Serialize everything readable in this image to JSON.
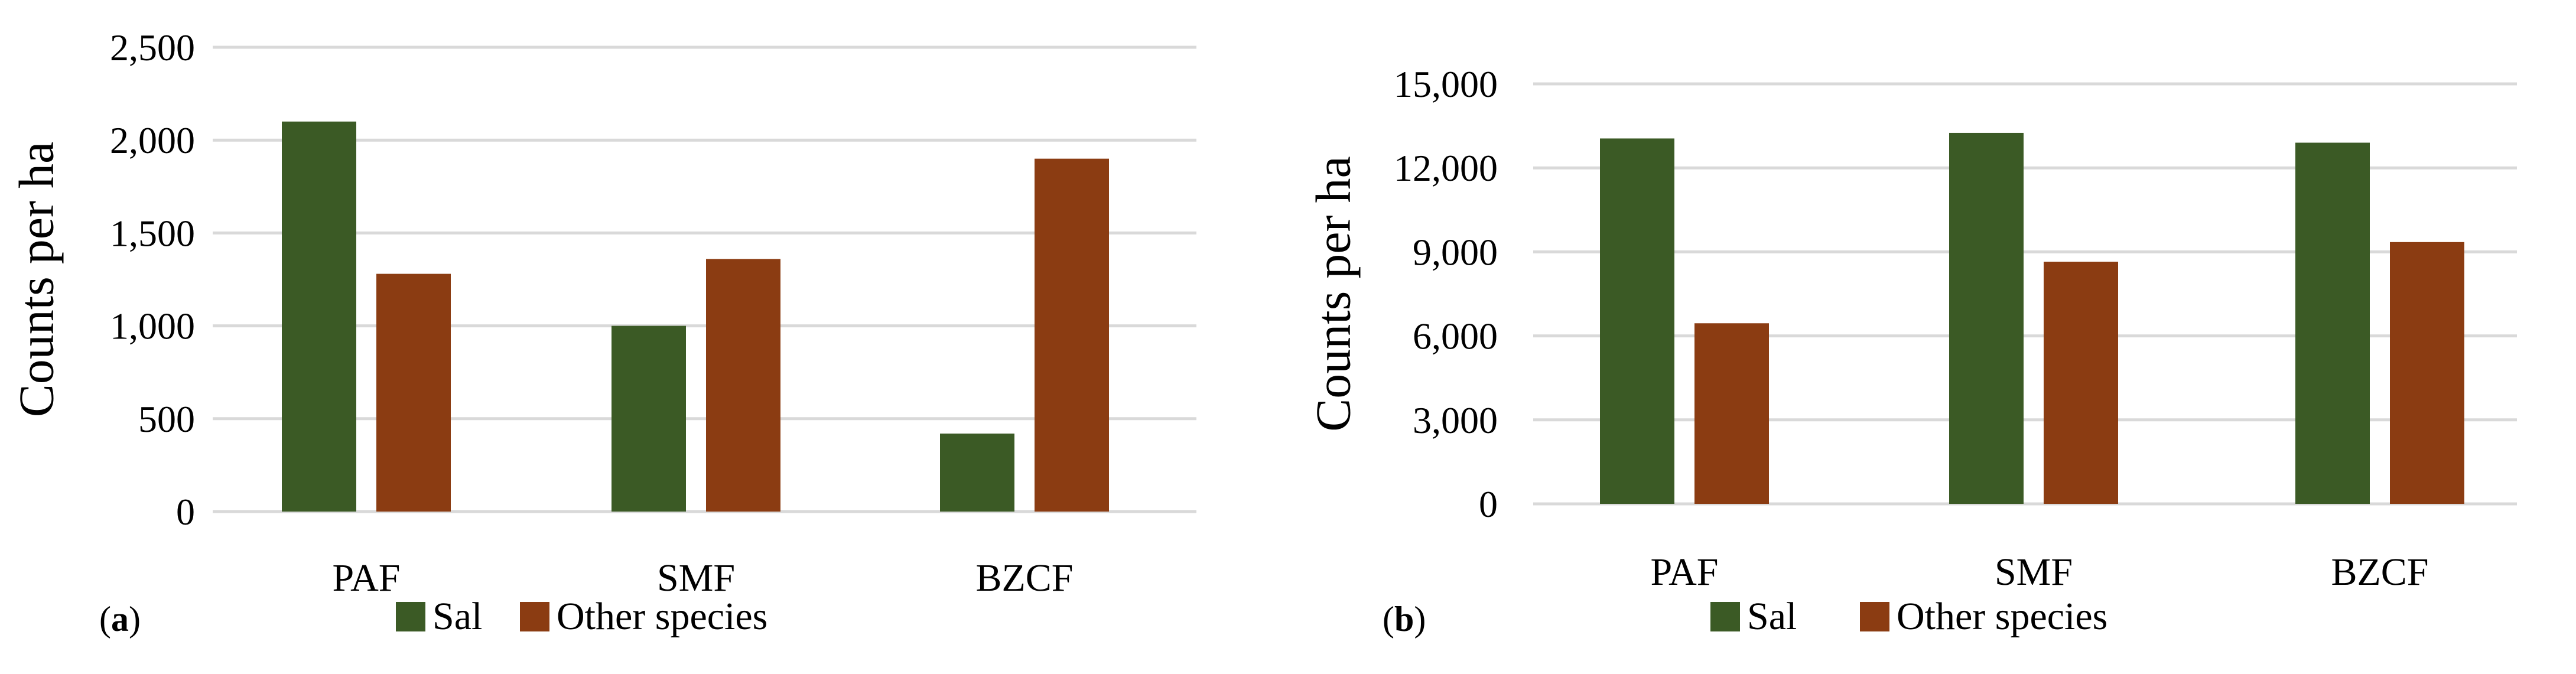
{
  "colors": {
    "sal": "#3b5a25",
    "other": "#8b3c12",
    "grid": "#d9d9d9"
  },
  "chart_data": [
    {
      "type": "bar",
      "panel": "(a)",
      "panel_letter": "a",
      "categories": [
        "PAF",
        "SMF",
        "BZCF"
      ],
      "series": [
        {
          "name": "Sal",
          "values": [
            2100,
            1000,
            420
          ]
        },
        {
          "name": "Other species",
          "values": [
            1280,
            1360,
            1900
          ]
        }
      ],
      "ylabel": "Counts per ha",
      "xlabel": "",
      "ylim": [
        0,
        2500
      ],
      "yticks": [
        0,
        500,
        1000,
        1500,
        2000,
        2500
      ],
      "ytick_labels": [
        "0",
        "500",
        "1,000",
        "1,500",
        "2,000",
        "2,500"
      ],
      "grid": true,
      "legend_position": "bottom"
    },
    {
      "type": "bar",
      "panel": "(b)",
      "panel_letter": "b",
      "categories": [
        "PAF",
        "SMF",
        "BZCF"
      ],
      "series": [
        {
          "name": "Sal",
          "values": [
            13050,
            13250,
            12900
          ]
        },
        {
          "name": "Other species",
          "values": [
            6450,
            8650,
            9350
          ]
        }
      ],
      "ylabel": "Counts per ha",
      "xlabel": "",
      "ylim": [
        0,
        15000
      ],
      "yticks": [
        0,
        3000,
        6000,
        9000,
        12000,
        15000
      ],
      "ytick_labels": [
        "0",
        "3,000",
        "6,000",
        "9,000",
        "12,000",
        "15,000"
      ],
      "grid": true,
      "legend_position": "bottom"
    }
  ]
}
